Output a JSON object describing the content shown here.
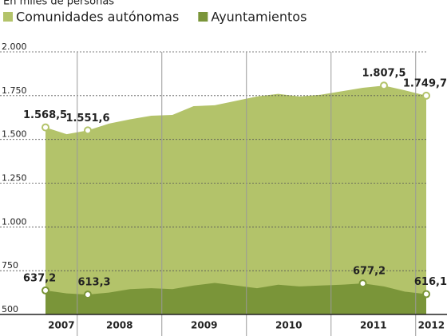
{
  "chart_data": {
    "type": "area",
    "subtitle": "En miles de personas",
    "categories": [
      null,
      null,
      null,
      null,
      null,
      null,
      null,
      null,
      null,
      null,
      null,
      null,
      null,
      null,
      null,
      null,
      null,
      null,
      null
    ],
    "x_groups": [
      {
        "label": "2007",
        "count": 2
      },
      {
        "label": "2008",
        "count": 4
      },
      {
        "label": "2009",
        "count": 4
      },
      {
        "label": "2010",
        "count": 4
      },
      {
        "label": "2011",
        "count": 4
      },
      {
        "label": "2012",
        "count": 1
      }
    ],
    "series": [
      {
        "name": "Comunidades autónomas",
        "color": "#b3c36a",
        "values": [
          1568.5,
          1530,
          1551.6,
          1590,
          1615,
          1635,
          1640,
          1690,
          1695,
          1720,
          1745,
          1760,
          1745,
          1755,
          1775,
          1795,
          1807.5,
          1780,
          1749.7
        ],
        "value_labels": [
          "1.568,5",
          null,
          "1.551,6",
          null,
          null,
          null,
          null,
          null,
          null,
          null,
          null,
          null,
          null,
          null,
          null,
          null,
          "1.807,5",
          null,
          "1.749,7"
        ]
      },
      {
        "name": "Ayuntamientos",
        "color": "#7a9539",
        "values": [
          637.2,
          620,
          613.3,
          625,
          645,
          650,
          645,
          665,
          680,
          665,
          650,
          670,
          660,
          665,
          670,
          677.2,
          660,
          630,
          616.1
        ],
        "value_labels": [
          "637,2",
          null,
          "613,3",
          null,
          null,
          null,
          null,
          null,
          null,
          null,
          null,
          null,
          null,
          null,
          null,
          "677,2",
          null,
          null,
          "616,1"
        ]
      }
    ],
    "ylim": [
      500,
      2000
    ],
    "yticks": [
      500,
      750,
      {
        "value": 1000,
        "label": "1.000"
      },
      {
        "value": 1250,
        "label": "1.250"
      },
      {
        "value": 1500,
        "label": "1.500"
      },
      {
        "value": 1750,
        "label": "1.750"
      },
      {
        "value": 2000,
        "label": "2.000"
      }
    ],
    "grid": true
  }
}
